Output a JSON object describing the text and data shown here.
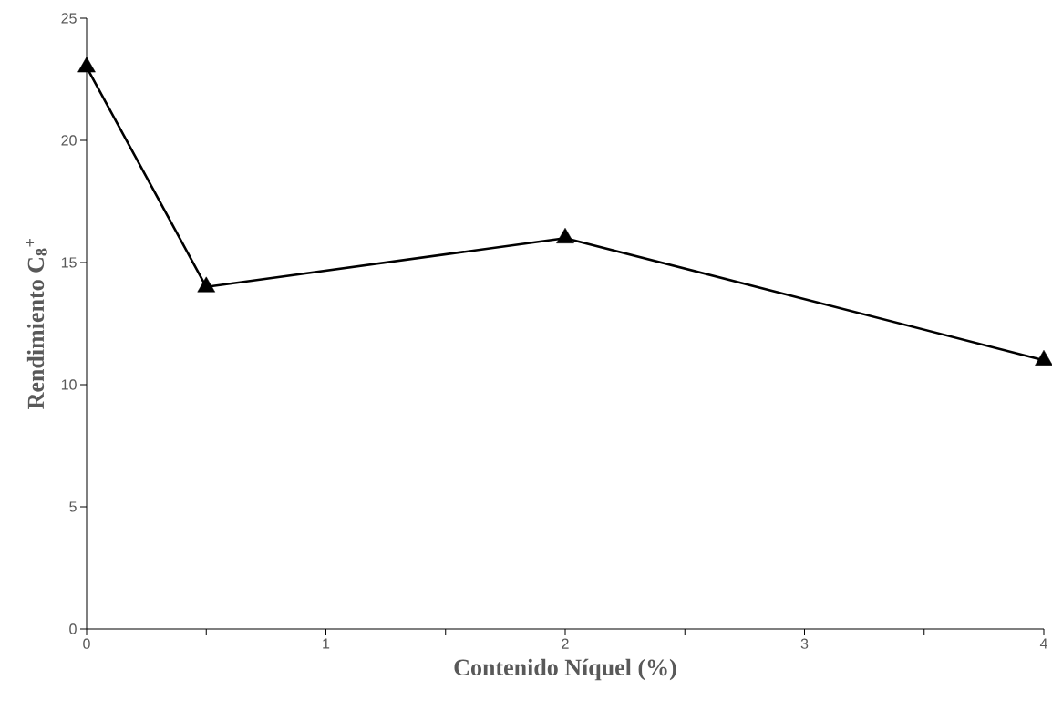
{
  "chart_data": {
    "type": "line",
    "xlabel": "Contenido Níquel (%)",
    "ylabel": "Rendimiento C$_{8}$$^{+}$",
    "x": [
      0,
      0.5,
      2,
      4
    ],
    "series": [
      {
        "color": "#000000",
        "values": [
          23,
          14,
          16,
          11
        ]
      }
    ],
    "xlim": [
      0,
      4
    ],
    "ylim": [
      0,
      25
    ],
    "xticks": [
      0,
      {
        "value": 0.5,
        "label": null
      },
      1,
      {
        "value": 1.5,
        "label": null
      },
      2,
      {
        "value": 2.5,
        "label": null
      },
      3,
      {
        "value": 3.5,
        "label": null
      },
      4
    ],
    "yticks": [
      0,
      5,
      10,
      15,
      20,
      25
    ],
    "grid": false,
    "marker": "triangle",
    "line_style": "solid"
  }
}
